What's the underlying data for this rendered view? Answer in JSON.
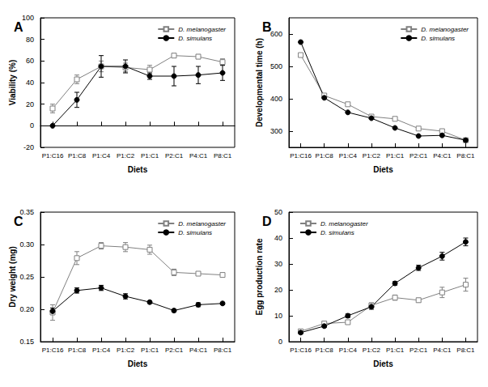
{
  "chart_data": [
    {
      "type": "line",
      "title": "A",
      "x_label": "Diets",
      "y_label": "Viability (%)",
      "categories": [
        "P1:C16",
        "P1:C8",
        "P1:C4",
        "P1:C2",
        "P1:C1",
        "P2:C1",
        "P4:C1",
        "P8:C1"
      ],
      "series": [
        {
          "name": "D. melanogaster",
          "color": "#808080",
          "marker": "square-open",
          "values": [
            16,
            43,
            55,
            54,
            52,
            65,
            64,
            59
          ],
          "errors": [
            4,
            4,
            5,
            4,
            4,
            2,
            2,
            3
          ]
        },
        {
          "name": "D. simulans",
          "color": "#000000",
          "marker": "circle",
          "values": [
            0,
            24,
            55,
            55,
            46,
            46,
            47,
            49
          ],
          "errors": [
            0,
            7,
            10,
            6,
            3,
            9,
            8,
            7
          ]
        }
      ],
      "ylim": [
        -20,
        100
      ],
      "yticks": [
        -20,
        0,
        20,
        40,
        60,
        80,
        100
      ],
      "grid": false,
      "legend": "top-right"
    },
    {
      "type": "line",
      "title": "B",
      "x_label": "Diets",
      "y_label": "Developmental time (h)",
      "categories": [
        "P1:C16",
        "P1:C8",
        "P1:C4",
        "P1:C2",
        "P1:C1",
        "P2:C1",
        "P4:C1",
        "P8:C1"
      ],
      "series": [
        {
          "name": "D. melanogaster",
          "color": "#808080",
          "marker": "square-open",
          "values": [
            535,
            410,
            383,
            345,
            338,
            308,
            300,
            272
          ]
        },
        {
          "name": "D. simulans",
          "color": "#000000",
          "marker": "circle",
          "values": [
            575,
            403,
            358,
            340,
            310,
            285,
            287,
            272
          ]
        }
      ],
      "ylim": [
        250,
        650
      ],
      "yticks": [
        300,
        400,
        500,
        600
      ],
      "grid": false,
      "legend": "top-right"
    },
    {
      "type": "line",
      "title": "C",
      "x_label": "Diets",
      "y_label": "Dry weight (mg)",
      "categories": [
        "P1:C16",
        "P1:C8",
        "P1:C4",
        "P1:C2",
        "P1:C1",
        "P2:C1",
        "P4:C1",
        "P8:C1"
      ],
      "series": [
        {
          "name": "D. melanogaster",
          "color": "#808080",
          "marker": "square-open",
          "values": [
            0.195,
            0.279,
            0.298,
            0.296,
            0.292,
            0.257,
            0.255,
            0.253
          ],
          "errors": [
            0.012,
            0.01,
            0.005,
            0.007,
            0.007,
            0.005,
            0.003,
            0.003
          ]
        },
        {
          "name": "D. simulans",
          "color": "#000000",
          "marker": "circle",
          "values": [
            0.197,
            0.229,
            0.233,
            0.22,
            0.211,
            0.198,
            0.207,
            0.209
          ],
          "errors": [
            0.005,
            0.004,
            0.004,
            0.004,
            0.002,
            0.002,
            0.003,
            0.002
          ]
        }
      ],
      "ylim": [
        0.15,
        0.35
      ],
      "yticks": [
        {
          "value": 0.15,
          "label": "0.15"
        },
        {
          "value": 0.2,
          "label": "0.20"
        },
        {
          "value": 0.25,
          "label": "0.25"
        },
        {
          "value": 0.3,
          "label": "0.30"
        },
        {
          "value": 0.35,
          "label": "0.35"
        }
      ],
      "grid": false,
      "legend": "top-right"
    },
    {
      "type": "line",
      "title": "D",
      "x_label": "Diets",
      "y_label": "Egg production rate",
      "categories": [
        "P1:C16",
        "P1:C8",
        "P1:C4",
        "P1:C2",
        "P1:C1",
        "P2:C1",
        "P4:C1",
        "P8:C1"
      ],
      "series": [
        {
          "name": "D. melanogaster",
          "color": "#808080",
          "marker": "square-open",
          "values": [
            4,
            7,
            7.5,
            14,
            17,
            16,
            19,
            22
          ],
          "errors": [
            0.5,
            0.8,
            0.8,
            1,
            1,
            0.8,
            2,
            2.5
          ]
        },
        {
          "name": "D. simulans",
          "color": "#000000",
          "marker": "circle",
          "values": [
            3.5,
            6,
            10,
            13.5,
            22.5,
            28.5,
            33,
            38.5
          ],
          "errors": [
            0.5,
            0.5,
            0.7,
            1,
            0.7,
            1,
            1.5,
            1.5
          ]
        }
      ],
      "ylim": [
        0,
        50
      ],
      "yticks": [
        0,
        10,
        20,
        30,
        40,
        50
      ],
      "grid": false,
      "legend": "top-left"
    }
  ]
}
